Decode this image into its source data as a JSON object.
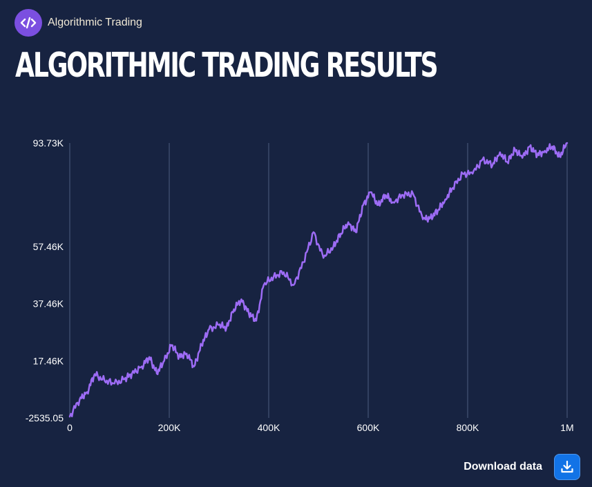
{
  "brand": {
    "name": "Algorithmic Trading",
    "icon": "code-icon",
    "badge_color": "#7B4FE0"
  },
  "title": "ALGORITHMIC TRADING RESULTS",
  "download": {
    "label": "Download data",
    "icon": "download-icon",
    "button_color": "#1273E6"
  },
  "chart_data": {
    "type": "line",
    "title": "",
    "xlabel": "",
    "ylabel": "",
    "xlim": [
      0,
      1000000
    ],
    "ylim": [
      -2535.05,
      93730
    ],
    "x_ticks": [
      0,
      200000,
      400000,
      600000,
      800000,
      1000000
    ],
    "x_tick_labels": [
      "0",
      "200K",
      "400K",
      "600K",
      "800K",
      "1M"
    ],
    "y_ticks": [
      -2535.05,
      17460,
      37460,
      57460,
      93730
    ],
    "y_tick_labels": [
      "-2535.05",
      "17.46K",
      "37.46K",
      "57.46K",
      "93.73K"
    ],
    "grid": "vertical",
    "line_color": "#9D6CF5",
    "series": [
      {
        "x": [
          0,
          20000,
          35000,
          50000,
          70000,
          90000,
          110000,
          125000,
          145000,
          160000,
          175000,
          190000,
          205000,
          220000,
          235000,
          250000,
          265000,
          280000,
          300000,
          315000,
          330000,
          345000,
          360000,
          375000,
          390000,
          410000,
          430000,
          450000,
          470000,
          490000,
          510000,
          530000,
          545000,
          560000,
          575000,
          590000,
          605000,
          620000,
          635000,
          650000,
          670000,
          690000,
          710000,
          725000,
          740000,
          755000,
          770000,
          790000,
          810000,
          830000,
          850000,
          865000,
          880000,
          895000,
          910000,
          925000,
          940000,
          955000,
          970000,
          985000,
          1000000
        ],
        "y": [
          -2000,
          4000,
          6500,
          12800,
          10500,
          9500,
          11000,
          13000,
          15500,
          18800,
          13000,
          17500,
          23000,
          19000,
          20000,
          15500,
          23000,
          28500,
          30000,
          29000,
          35500,
          39000,
          34000,
          31500,
          44000,
          47000,
          48500,
          44000,
          52000,
          62500,
          53500,
          57500,
          62000,
          66000,
          62500,
          72000,
          76500,
          72000,
          75500,
          73000,
          75500,
          76000,
          67000,
          67500,
          70000,
          74000,
          78000,
          83000,
          83000,
          88000,
          86000,
          90500,
          87000,
          91500,
          88500,
          92500,
          89500,
          91000,
          92500,
          89000,
          93730
        ]
      }
    ]
  }
}
